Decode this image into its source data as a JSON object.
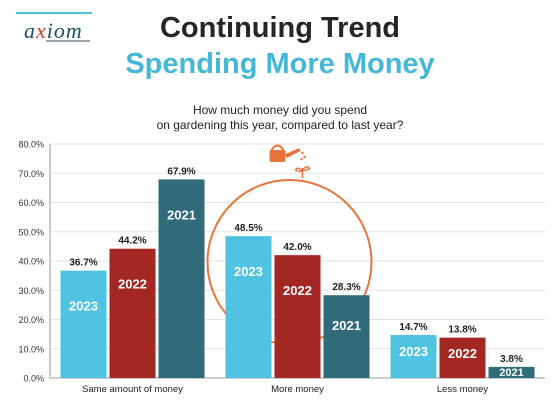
{
  "logo": {
    "text_a": "a",
    "text_x": "x",
    "text_rest": "iom"
  },
  "header": {
    "title": "Continuing Trend",
    "subtitle": "Spending More Money"
  },
  "question": {
    "line1": "How much money did you spend",
    "line2": "on gardening this year, compared to last year?"
  },
  "chart_data": {
    "type": "bar",
    "categories": [
      "Same amount of money",
      "More money",
      "Less money"
    ],
    "series": [
      {
        "name": "2023",
        "values": [
          36.7,
          48.5,
          14.7
        ],
        "color": "#4fc3e1"
      },
      {
        "name": "2022",
        "values": [
          44.2,
          42.0,
          13.8
        ],
        "color": "#a32722"
      },
      {
        "name": "2021",
        "values": [
          67.9,
          28.3,
          3.8
        ],
        "color": "#2f6b78"
      }
    ],
    "ylim": [
      0,
      80
    ],
    "yticks": [
      0,
      10,
      20,
      30,
      40,
      50,
      60,
      70,
      80
    ],
    "ytick_labels": [
      "0.0%",
      "10.0%",
      "20.0%",
      "30.0%",
      "40.0%",
      "50.0%",
      "60.0%",
      "70.0%",
      "80.0%"
    ],
    "value_suffix": "%",
    "grid": true,
    "highlight": {
      "category": "More money",
      "style": "orange circle with watering can icon",
      "color": "#e8743b"
    }
  }
}
